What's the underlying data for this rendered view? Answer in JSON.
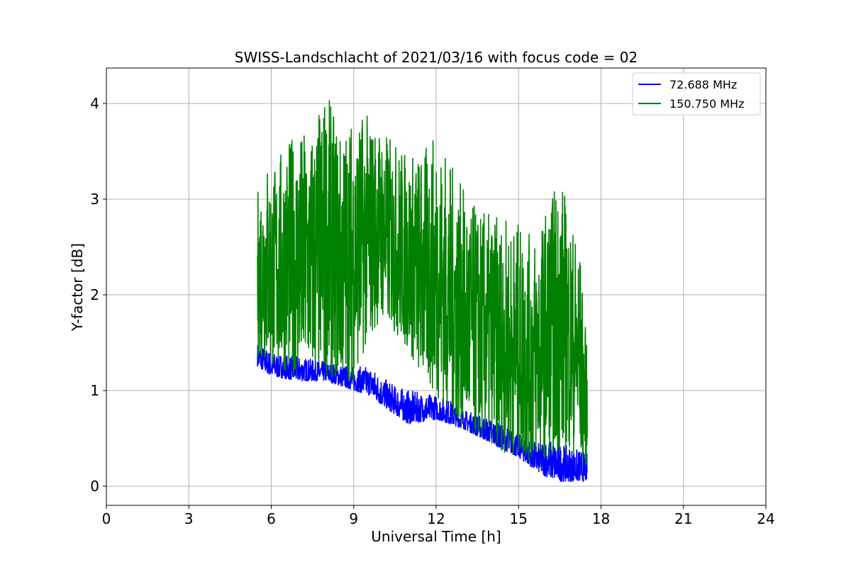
{
  "chart_data": {
    "type": "line",
    "title": "SWISS-Landschlacht of 2021/03/16 with focus code = 02",
    "xlabel": "Universal Time [h]",
    "ylabel": "Y-factor [dB]",
    "xlim": [
      0,
      24
    ],
    "ylim": [
      -0.2,
      4.37
    ],
    "xticks": [
      0,
      3,
      6,
      9,
      12,
      15,
      18,
      21,
      24
    ],
    "xtick_labels": [
      "0",
      "3",
      "6",
      "9",
      "12",
      "15",
      "18",
      "21",
      "24"
    ],
    "yticks": [
      0,
      1,
      2,
      3,
      4
    ],
    "ytick_labels": [
      "0",
      "1",
      "2",
      "3",
      "4"
    ],
    "grid": true,
    "legend_position": "top-right",
    "series": [
      {
        "name": " 72.688 MHz",
        "color": "#0000ff",
        "envelope": {
          "x": [
            5.5,
            6.0,
            7.0,
            8.0,
            9.0,
            9.6,
            10.0,
            10.5,
            11.0,
            12.0,
            12.5,
            13.0,
            14.0,
            15.0,
            15.7,
            16.0,
            16.5,
            17.0,
            17.5
          ],
          "low": [
            1.25,
            1.15,
            1.1,
            1.1,
            1.0,
            0.95,
            0.85,
            0.75,
            0.65,
            0.7,
            0.65,
            0.6,
            0.45,
            0.3,
            0.15,
            0.1,
            0.05,
            0.05,
            0.05
          ],
          "high": [
            1.5,
            1.4,
            1.35,
            1.3,
            1.25,
            1.25,
            1.15,
            1.05,
            1.0,
            0.95,
            0.9,
            0.8,
            0.7,
            0.55,
            0.45,
            0.5,
            0.45,
            0.4,
            0.35
          ]
        }
      },
      {
        "name": "150.750 MHz",
        "color": "#008000",
        "envelope": {
          "x": [
            5.5,
            5.8,
            6.0,
            6.5,
            7.0,
            7.5,
            8.0,
            8.5,
            9.0,
            9.5,
            10.0,
            10.5,
            11.0,
            11.5,
            12.0,
            12.5,
            13.0,
            13.5,
            14.0,
            14.5,
            15.0,
            15.5,
            16.0,
            16.5,
            17.0,
            17.2,
            17.5
          ],
          "low": [
            1.35,
            1.3,
            1.25,
            1.2,
            1.15,
            1.15,
            1.15,
            1.1,
            1.1,
            1.5,
            1.75,
            1.6,
            1.4,
            1.1,
            0.95,
            0.75,
            0.6,
            0.5,
            0.45,
            0.35,
            0.3,
            0.25,
            0.3,
            0.35,
            0.35,
            0.3,
            0.2
          ],
          "high": [
            3.1,
            3.5,
            3.3,
            3.6,
            3.7,
            3.75,
            4.15,
            3.7,
            3.9,
            3.9,
            3.75,
            3.6,
            3.5,
            3.5,
            3.7,
            3.4,
            3.1,
            2.9,
            2.85,
            2.8,
            2.75,
            2.6,
            2.9,
            3.3,
            2.7,
            2.6,
            1.4
          ]
        }
      }
    ]
  }
}
